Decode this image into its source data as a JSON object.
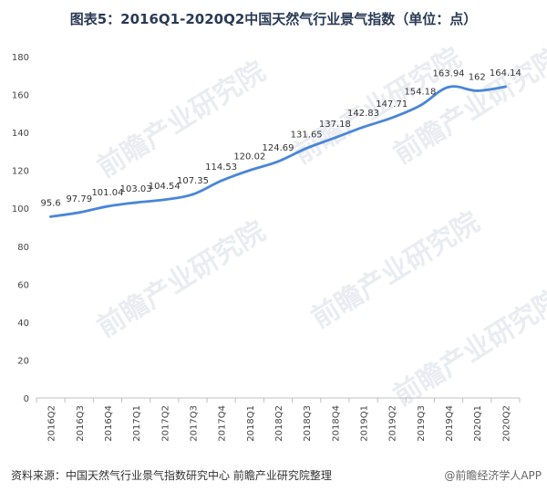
{
  "header": {
    "title": "图表5：2016Q1-2020Q2中国天然气行业景气指数（单位：点）"
  },
  "footer": {
    "source": "资料来源：中国天然气行业景气指数研究中心 前瞻产业研究院整理",
    "watermark": "@前瞻经济学人APP"
  },
  "background_watermark": "前瞻产业研究院",
  "colors": {
    "line": "#4a86d8",
    "axis": "#bfbfbf",
    "grid": "#e6e6e6"
  },
  "chart_data": {
    "type": "line",
    "title": "图表5：2016Q1-2020Q2中国天然气行业景气指数（单位：点）",
    "xlabel": "",
    "ylabel": "",
    "ylim": [
      0,
      180
    ],
    "yticks": [
      0,
      20,
      40,
      60,
      80,
      100,
      120,
      140,
      160,
      180
    ],
    "grid": false,
    "categories": [
      "2016Q2",
      "2016Q3",
      "2016Q4",
      "2017Q1",
      "2017Q2",
      "2017Q3",
      "2017Q4",
      "2018Q1",
      "2018Q2",
      "2018Q3",
      "2018Q4",
      "2019Q1",
      "2019Q2",
      "2019Q3",
      "2019Q4",
      "2020Q1",
      "2020Q2"
    ],
    "values": [
      95.6,
      97.79,
      101.04,
      103.03,
      104.54,
      107.35,
      114.53,
      120.02,
      124.69,
      131.65,
      137.18,
      142.83,
      147.71,
      154.18,
      163.94,
      162,
      164.14
    ],
    "data_labels": [
      "95.6",
      "97.79",
      "101.04",
      "103.03",
      "104.54",
      "107.35",
      "114.53",
      "120.02",
      "124.69",
      "131.65",
      "137.18",
      "142.83",
      "147.71",
      "154.18",
      "163.94",
      "162",
      "164.14"
    ]
  }
}
